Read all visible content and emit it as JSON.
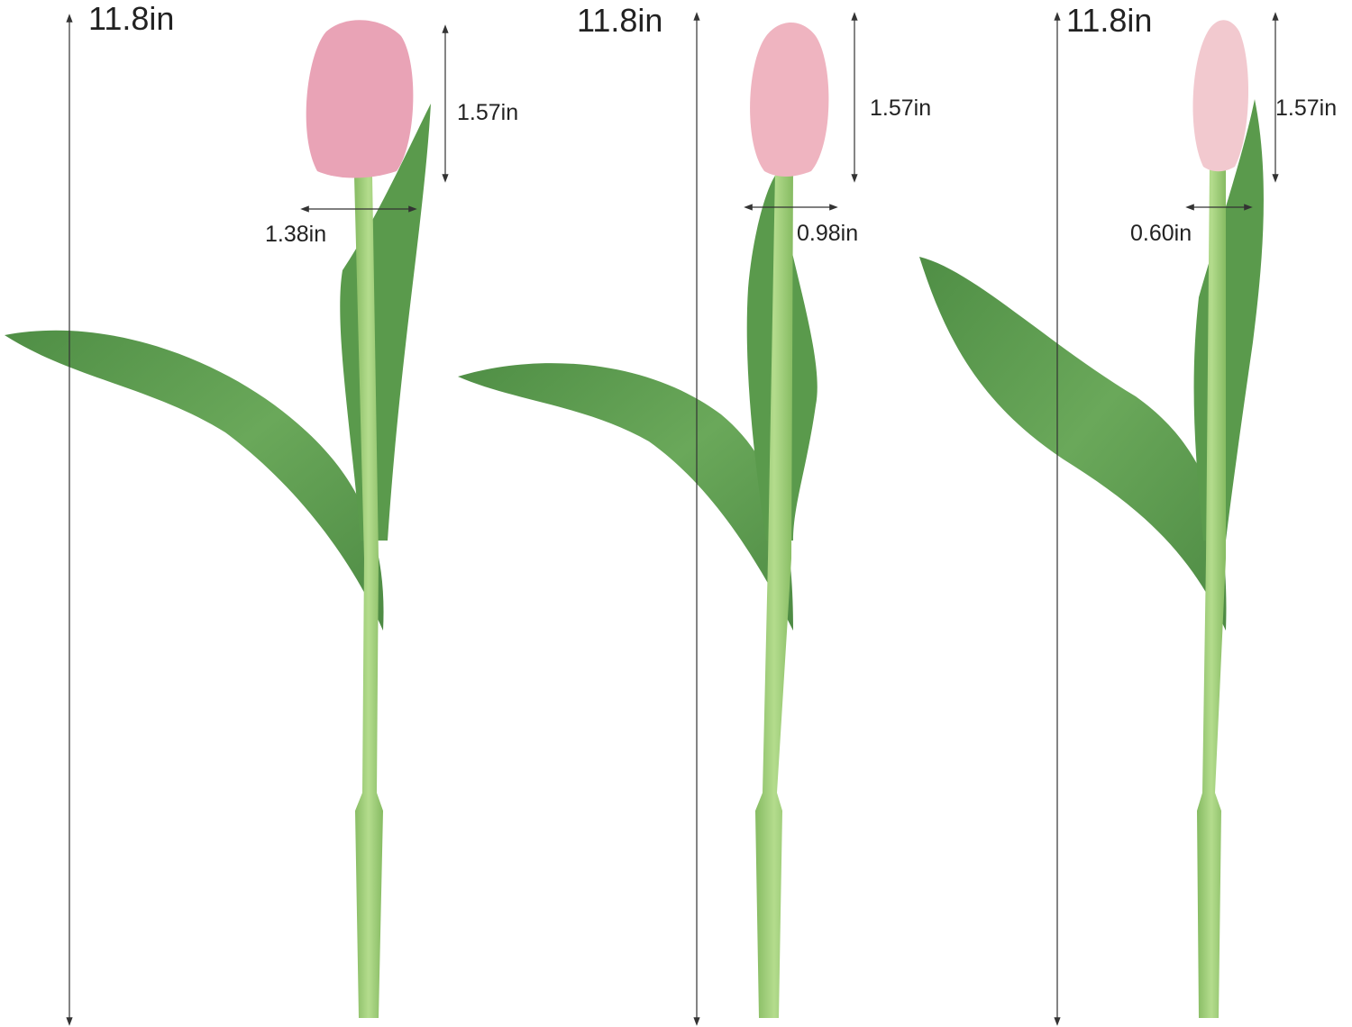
{
  "tulips": [
    {
      "height_label": "11.8in",
      "bud_height_label": "1.57in",
      "bud_width_label": "1.38in",
      "bud_color": "#e9a3b6"
    },
    {
      "height_label": "11.8in",
      "bud_height_label": "1.57in",
      "bud_width_label": "0.98in",
      "bud_color": "#efb4c0"
    },
    {
      "height_label": "11.8in",
      "bud_height_label": "1.57in",
      "bud_width_label": "0.60in",
      "bud_color": "#f2c9cf"
    }
  ],
  "colors": {
    "leaf": "#5e9d50",
    "leaf_light": "#8fbf78",
    "stem": "#9ccb77",
    "line": "#333333"
  }
}
